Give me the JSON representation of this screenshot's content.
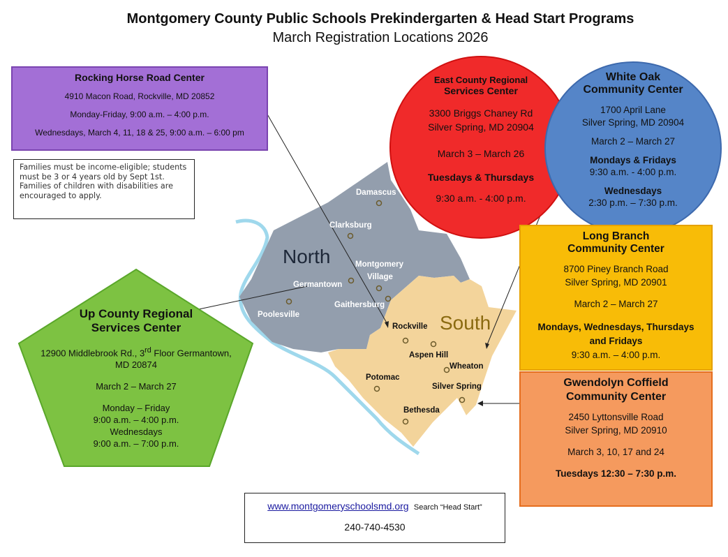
{
  "header": {
    "title": "Montgomery County Public Schools Prekindergarten & Head Start Programs",
    "subtitle": "March Registration Locations 2026"
  },
  "rocking_horse": {
    "name": "Rocking Horse Road Center",
    "address": "4910 Macon Road, Rockville, MD 20852",
    "hours": "Monday-Friday, 9:00 a.m. – 4:00 p.m.",
    "wednesdays": "Wednesdays, March 4, 11, 18 & 25, 9:00 a.m. – 6:00 pm",
    "color": "#a36fd6"
  },
  "eligibility_note": "Families must be income-eligible; students must be 3 or 4 years old by Sept 1st. Families of children with disabilities are encouraged to apply.",
  "east_county": {
    "name_line1": "East County Regional",
    "name_line2": "Services Center",
    "address1": "3300 Briggs Chaney Rd",
    "address2": "Silver Spring, MD 20904",
    "dates": "March 3 – March 26",
    "days": "Tuesdays & Thursdays",
    "hours": "9:30 a.m. - 4:00 p.m.",
    "color": "#f02a2a"
  },
  "white_oak": {
    "name_line1": "White Oak",
    "name_line2": "Community Center",
    "address1": "1700 April Lane",
    "address2": "Silver Spring, MD 20904",
    "dates": "March 2 – March 27",
    "days1": "Mondays & Fridays",
    "hours1": "9:30 a.m. - 4:00 p.m.",
    "days2": "Wednesdays",
    "hours2": "2:30 p.m. – 7:30 p.m.",
    "color": "#5585c8"
  },
  "long_branch": {
    "name_line1": "Long Branch",
    "name_line2": "Community Center",
    "address1": "8700 Piney Branch Road",
    "address2": "Silver Spring, MD 20901",
    "dates": "March 2 – March 27",
    "days": "Mondays, Wednesdays, Thursdays and Fridays",
    "hours": "9:30 a.m. – 4:00 p.m.",
    "color": "#f8bc07"
  },
  "gwendolyn": {
    "name_line1": "Gwendolyn Coffield",
    "name_line2": "Community Center",
    "address1": "2450 Lyttonsville Road",
    "address2": "Silver Spring, MD 20910",
    "dates": "March 3, 10, 17 and 24",
    "days": "Tuesdays 12:30 – 7:30 p.m.",
    "color": "#f59a5e"
  },
  "up_county": {
    "name_line1": "Up County Regional",
    "name_line2": "Services Center",
    "address_pre": "12900 Middlebrook Rd., 3",
    "address_sup": "rd",
    "address_post": " Floor Germantown,",
    "address2": "MD 20874",
    "dates": "March 2 – March 27",
    "days1": "Monday – Friday",
    "hours1": "9:00 a.m. – 4:00 p.m.",
    "days2": "Wednesdays",
    "hours2": "9:00 a.m. – 7:00 p.m.",
    "color": "#7dc242"
  },
  "map": {
    "north_label": "North",
    "south_label": "South",
    "towns": [
      "Damascus",
      "Clarksburg",
      "Montgomery",
      "Village",
      "Germantown",
      "Poolesville",
      "Gaithersburg",
      "Rockville",
      "Aspen Hill",
      "Wheaton",
      "Potomac",
      "Silver Spring",
      "Bethesda"
    ]
  },
  "contact": {
    "website": "www.montgomeryschoolsmd.org",
    "search": "Search “Head Start”",
    "phone": "240-740-4530"
  }
}
